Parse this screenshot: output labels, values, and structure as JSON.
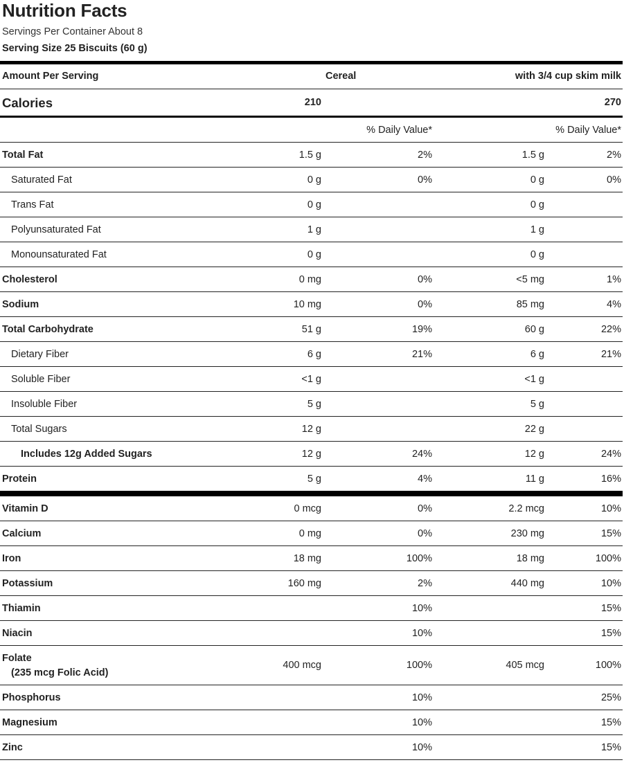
{
  "title": "Nutrition Facts",
  "servings_per_container": "Servings Per Container About 8",
  "serving_size": "Serving Size 25 Biscuits (60 g)",
  "header": {
    "amount_per_serving": "Amount Per Serving",
    "col_cereal": "Cereal",
    "col_milk": "with 3/4 cup skim milk"
  },
  "calories": {
    "label": "Calories",
    "cereal": "210",
    "milk": "270"
  },
  "dv_header": {
    "cereal": "% Daily Value*",
    "milk": "% Daily Value*"
  },
  "nutrients": [
    {
      "label": "Total Fat",
      "bold": true,
      "indent": 0,
      "amt1": "1.5 g",
      "dv1": "2%",
      "amt2": "1.5 g",
      "dv2": "2%"
    },
    {
      "label": "Saturated Fat",
      "bold": false,
      "indent": 1,
      "amt1": "0 g",
      "dv1": "0%",
      "amt2": "0 g",
      "dv2": "0%"
    },
    {
      "label": "Trans Fat",
      "bold": false,
      "indent": 1,
      "amt1": "0 g",
      "dv1": "",
      "amt2": "0 g",
      "dv2": ""
    },
    {
      "label": "Polyunsaturated Fat",
      "bold": false,
      "indent": 1,
      "amt1": "1 g",
      "dv1": "",
      "amt2": "1 g",
      "dv2": ""
    },
    {
      "label": "Monounsaturated Fat",
      "bold": false,
      "indent": 1,
      "amt1": "0 g",
      "dv1": "",
      "amt2": "0 g",
      "dv2": ""
    },
    {
      "label": "Cholesterol",
      "bold": true,
      "indent": 0,
      "amt1": "0 mg",
      "dv1": "0%",
      "amt2": "<5 mg",
      "dv2": "1%"
    },
    {
      "label": "Sodium",
      "bold": true,
      "indent": 0,
      "amt1": "10 mg",
      "dv1": "0%",
      "amt2": "85 mg",
      "dv2": "4%"
    },
    {
      "label": "Total Carbohydrate",
      "bold": true,
      "indent": 0,
      "amt1": "51 g",
      "dv1": "19%",
      "amt2": "60 g",
      "dv2": "22%"
    },
    {
      "label": "Dietary Fiber",
      "bold": false,
      "indent": 1,
      "amt1": "6 g",
      "dv1": "21%",
      "amt2": "6 g",
      "dv2": "21%"
    },
    {
      "label": "Soluble Fiber",
      "bold": false,
      "indent": 1,
      "amt1": "<1 g",
      "dv1": "",
      "amt2": "<1 g",
      "dv2": ""
    },
    {
      "label": "Insoluble Fiber",
      "bold": false,
      "indent": 1,
      "amt1": "5 g",
      "dv1": "",
      "amt2": "5 g",
      "dv2": ""
    },
    {
      "label": "Total Sugars",
      "bold": false,
      "indent": 1,
      "amt1": "12 g",
      "dv1": "",
      "amt2": "22 g",
      "dv2": ""
    },
    {
      "label": "Includes 12g Added Sugars",
      "bold": true,
      "indent": 2,
      "amt1": "12 g",
      "dv1": "24%",
      "amt2": "12 g",
      "dv2": "24%"
    },
    {
      "label": "Protein",
      "bold": true,
      "indent": 0,
      "amt1": "5 g",
      "dv1": "4%",
      "amt2": "11 g",
      "dv2": "16%"
    }
  ],
  "vitamins": [
    {
      "label": "Vitamin D",
      "sublabel": "",
      "amt1": "0 mcg",
      "dv1": "0%",
      "amt2": "2.2 mcg",
      "dv2": "10%"
    },
    {
      "label": "Calcium",
      "sublabel": "",
      "amt1": "0 mg",
      "dv1": "0%",
      "amt2": "230 mg",
      "dv2": "15%"
    },
    {
      "label": "Iron",
      "sublabel": "",
      "amt1": "18 mg",
      "dv1": "100%",
      "amt2": "18 mg",
      "dv2": "100%"
    },
    {
      "label": "Potassium",
      "sublabel": "",
      "amt1": "160 mg",
      "dv1": "2%",
      "amt2": "440 mg",
      "dv2": "10%"
    },
    {
      "label": "Thiamin",
      "sublabel": "",
      "amt1": "",
      "dv1": "10%",
      "amt2": "",
      "dv2": "15%"
    },
    {
      "label": "Niacin",
      "sublabel": "",
      "amt1": "",
      "dv1": "10%",
      "amt2": "",
      "dv2": "15%"
    },
    {
      "label": "Folate",
      "sublabel": "(235 mcg Folic Acid)",
      "amt1": "400 mcg",
      "dv1": "100%",
      "amt2": "405 mcg",
      "dv2": "100%"
    },
    {
      "label": "Phosphorus",
      "sublabel": "",
      "amt1": "",
      "dv1": "10%",
      "amt2": "",
      "dv2": "25%"
    },
    {
      "label": "Magnesium",
      "sublabel": "",
      "amt1": "",
      "dv1": "10%",
      "amt2": "",
      "dv2": "15%"
    },
    {
      "label": "Zinc",
      "sublabel": "",
      "amt1": "",
      "dv1": "10%",
      "amt2": "",
      "dv2": "15%"
    }
  ]
}
